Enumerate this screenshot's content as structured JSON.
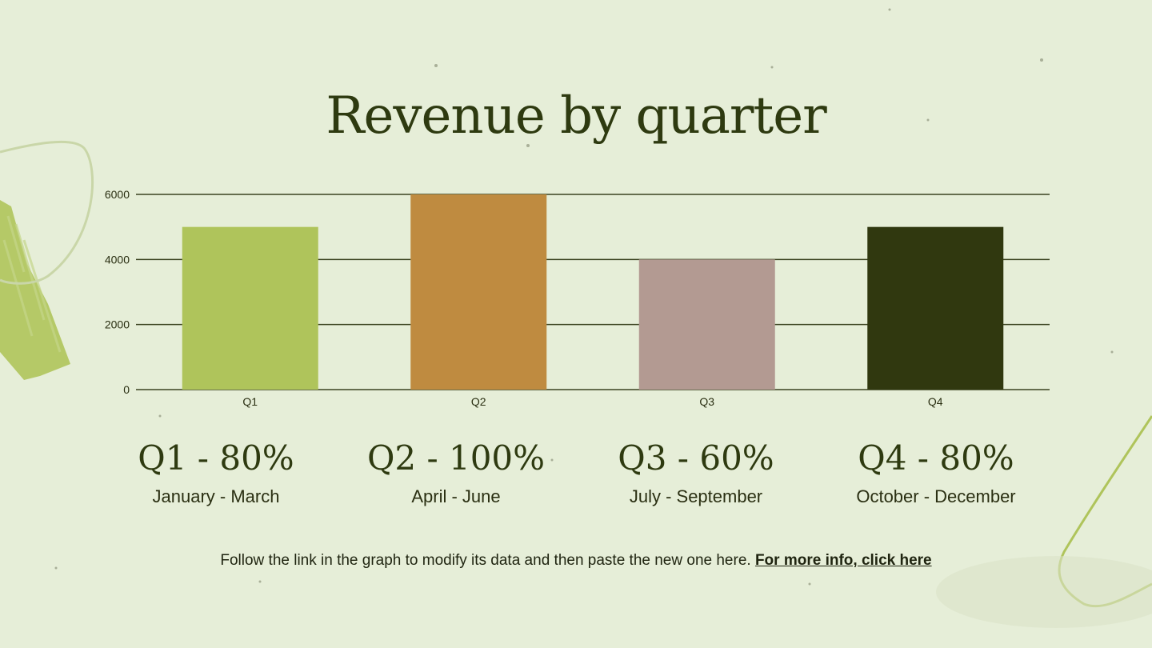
{
  "slide": {
    "title": "Revenue by quarter",
    "footer_text": "Follow the link in the graph to modify its data and then paste the new one here.",
    "footer_link": "For more info, click here"
  },
  "colors": {
    "background": "#e6eed8",
    "text": "#2e3a10",
    "accent_green": "#afc45b",
    "q1": "#afc45b",
    "q2": "#bf8b40",
    "q3": "#b39a92",
    "q4": "#30380f"
  },
  "quarters": [
    {
      "label": "Q1 - 80%",
      "months": "January - March"
    },
    {
      "label": "Q2 - 100%",
      "months": "April - June"
    },
    {
      "label": "Q3 - 60%",
      "months": "July - September"
    },
    {
      "label": "Q4 - 80%",
      "months": "October - December"
    }
  ],
  "chart_data": {
    "type": "bar",
    "categories": [
      "Q1",
      "Q2",
      "Q3",
      "Q4"
    ],
    "values": [
      5000,
      6000,
      4000,
      5000
    ],
    "bar_colors": [
      "#afc45b",
      "#bf8b40",
      "#b39a92",
      "#30380f"
    ],
    "yticks": [
      "0",
      "2000",
      "4000",
      "6000"
    ],
    "ylim": [
      0,
      6000
    ],
    "grid": true,
    "legend": "none"
  }
}
